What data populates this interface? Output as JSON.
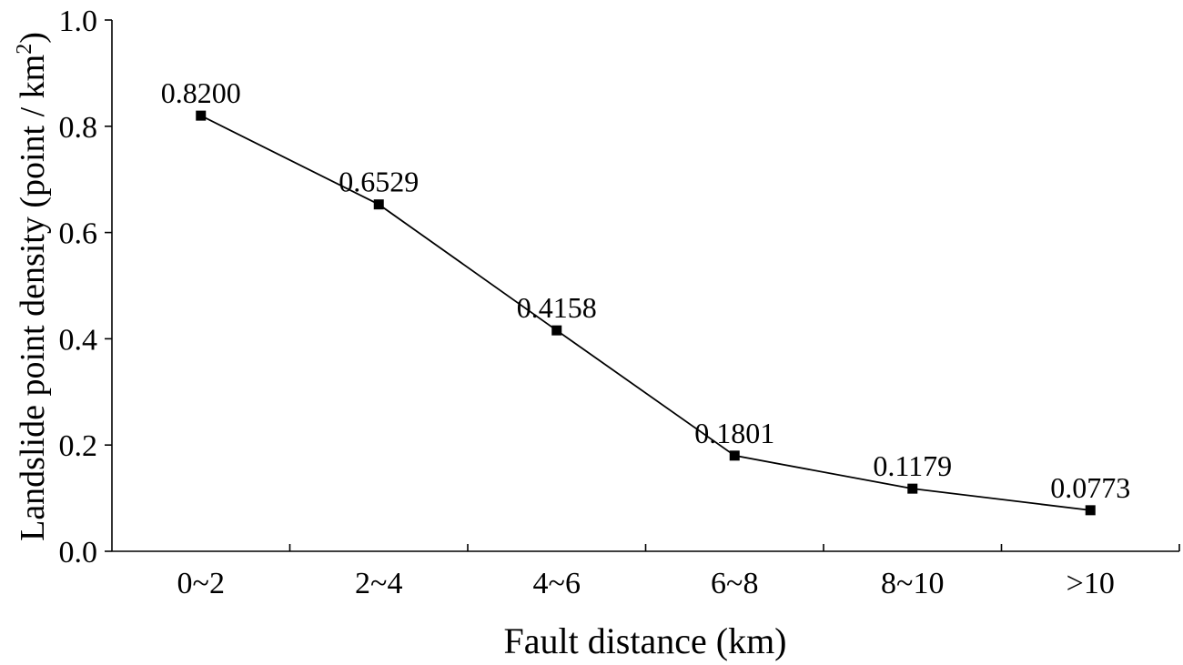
{
  "chart_data": {
    "type": "line",
    "title": "",
    "xlabel": "Fault distance (km)",
    "ylabel_main": "Landslide point density (point / km",
    "ylabel_sup": "2",
    "ylabel_close": ")",
    "categories": [
      "0~2",
      "2~4",
      "4~6",
      "6~8",
      "8~10",
      ">10"
    ],
    "series": [
      {
        "values": [
          0.82,
          0.6529,
          0.4158,
          0.1801,
          0.1179,
          0.0773
        ],
        "data_labels": [
          "0.8200",
          "0.6529",
          "0.4158",
          "0.1801",
          "0.1179",
          "0.0773"
        ],
        "marker": "square",
        "color": "#000000"
      }
    ],
    "ylim": [
      0.0,
      1.0
    ],
    "yticks": [
      "0.0",
      "0.2",
      "0.4",
      "0.6",
      "0.8",
      "1.0"
    ],
    "grid": false,
    "legend": "none"
  }
}
